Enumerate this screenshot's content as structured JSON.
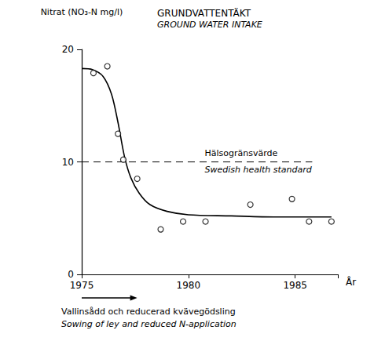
{
  "chart_data": {
    "type": "line",
    "title": "GRUNDVATTENTÄKT",
    "subtitle": "GROUND WATER INTAKE",
    "y_label": "Nitrat (NO₃-N mg/l)",
    "x_label": "År",
    "xlim": [
      1975,
      1987
    ],
    "xticks": [
      1975,
      1980,
      1985
    ],
    "ylim": [
      0,
      20
    ],
    "yticks": [
      0,
      10,
      20
    ],
    "grid": false,
    "series": [
      {
        "type": "scatter",
        "marker": "circle",
        "color": "#000000",
        "x": [
          1975.55,
          1976.2,
          1976.7,
          1976.95,
          1977.6,
          1978.7,
          1979.75,
          1980.8,
          1982.9,
          1984.85,
          1985.65,
          1986.7
        ],
        "values": [
          17.9,
          18.5,
          12.5,
          10.2,
          8.5,
          4.0,
          4.7,
          4.7,
          6.2,
          6.7,
          4.7,
          4.7
        ]
      },
      {
        "type": "line",
        "line_style": "solid",
        "color": "#000000",
        "x": [
          1975,
          1975.5,
          1976,
          1976.4,
          1976.7,
          1977,
          1977.3,
          1977.7,
          1978.2,
          1979,
          1980,
          1982,
          1984,
          1986.7
        ],
        "values": [
          18.3,
          18.2,
          17.6,
          16.0,
          13.5,
          10.5,
          8.6,
          7.2,
          6.2,
          5.6,
          5.3,
          5.2,
          5.1,
          5.1
        ]
      },
      {
        "type": "line",
        "line_style": "dashed",
        "color": "#000000",
        "label": [
          "Hälsogränsvärde",
          "Swedish health standard"
        ],
        "x": [
          1975,
          1985.8
        ],
        "values": [
          10,
          10
        ]
      }
    ],
    "annotations": [
      {
        "text": [
          "Vallinsådd och reducerad kvävegödsling",
          "Sowing of ley and reduced N-application"
        ],
        "x": [
          1975,
          1977.6
        ]
      }
    ]
  }
}
